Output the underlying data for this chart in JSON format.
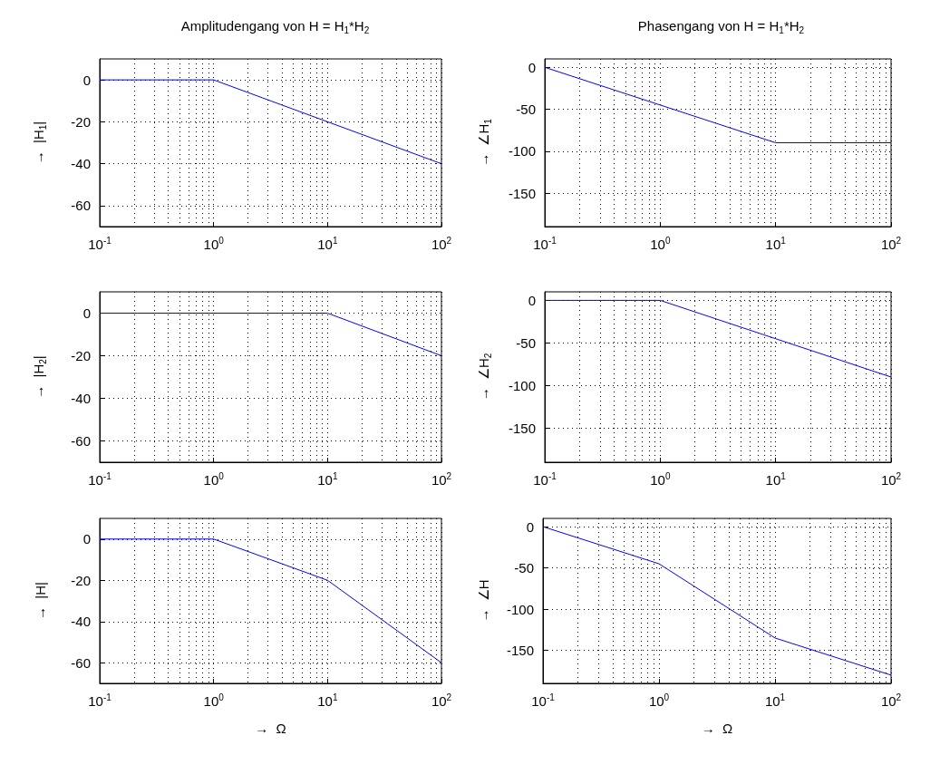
{
  "chart_data": [
    {
      "type": "line",
      "title": "Amplitudengang von H = H$_{1}$*H$_{2}$",
      "ylabel": "→  |H$_{1}$|",
      "log": "x",
      "grid": true,
      "marker": "none",
      "line_style": "solid",
      "xlim": [
        0.1,
        100
      ],
      "xticks": [
        {
          "value": 0.1,
          "label": "10$^{-1}$"
        },
        {
          "value": 1,
          "label": "10$^{0}$"
        },
        {
          "value": 10,
          "label": "10$^{1}$"
        },
        {
          "value": 100,
          "label": "10$^{2}$"
        }
      ],
      "ylim": [
        -70,
        10
      ],
      "yticks": [
        -60,
        -40,
        -20,
        0
      ],
      "series": [
        {
          "color": "#0000ff",
          "x": [
            0.1,
            1,
            100
          ],
          "values": [
            0,
            0,
            -40
          ]
        }
      ]
    },
    {
      "type": "line",
      "title": "Phasengang von H = H$_{1}$*H$_{2}$",
      "ylabel": "→  ∠H$_{1}$",
      "log": "x",
      "grid": true,
      "marker": "none",
      "line_style": "solid",
      "xlim": [
        0.1,
        100
      ],
      "xticks": [
        {
          "value": 0.1,
          "label": "10$^{-1}$"
        },
        {
          "value": 1,
          "label": "10$^{0}$"
        },
        {
          "value": 10,
          "label": "10$^{1}$"
        },
        {
          "value": 100,
          "label": "10$^{2}$"
        }
      ],
      "ylim": [
        -190,
        10
      ],
      "yticks": [
        -150,
        -100,
        -50,
        0
      ],
      "series": [
        {
          "color": "#0000ff",
          "x": [
            0.1,
            10,
            100
          ],
          "values": [
            0,
            -90,
            -90
          ]
        }
      ]
    },
    {
      "type": "line",
      "ylabel": "→  |H$_{2}$|",
      "log": "x",
      "grid": true,
      "marker": "none",
      "line_style": "solid",
      "xlim": [
        0.1,
        100
      ],
      "xticks": [
        {
          "value": 0.1,
          "label": "10$^{-1}$"
        },
        {
          "value": 1,
          "label": "10$^{0}$"
        },
        {
          "value": 10,
          "label": "10$^{1}$"
        },
        {
          "value": 100,
          "label": "10$^{2}$"
        }
      ],
      "ylim": [
        -70,
        10
      ],
      "yticks": [
        -60,
        -40,
        -20,
        0
      ],
      "series": [
        {
          "color": "#0000ff",
          "x": [
            0.1,
            10,
            100
          ],
          "values": [
            0,
            0,
            -20
          ]
        }
      ]
    },
    {
      "type": "line",
      "ylabel": "→  ∠H$_{2}$",
      "log": "x",
      "grid": true,
      "marker": "none",
      "line_style": "solid",
      "xlim": [
        0.1,
        100
      ],
      "xticks": [
        {
          "value": 0.1,
          "label": "10$^{-1}$"
        },
        {
          "value": 1,
          "label": "10$^{0}$"
        },
        {
          "value": 10,
          "label": "10$^{1}$"
        },
        {
          "value": 100,
          "label": "10$^{2}$"
        }
      ],
      "ylim": [
        -190,
        10
      ],
      "yticks": [
        -150,
        -100,
        -50,
        0
      ],
      "series": [
        {
          "color": "#0000ff",
          "x": [
            0.1,
            1,
            100
          ],
          "values": [
            0,
            0,
            -90
          ]
        }
      ]
    },
    {
      "type": "line",
      "ylabel": "→  |H|",
      "xlabel": "→  Ω",
      "log": "x",
      "grid": true,
      "marker": "none",
      "line_style": "solid",
      "xlim": [
        0.1,
        100
      ],
      "xticks": [
        {
          "value": 0.1,
          "label": "10$^{-1}$"
        },
        {
          "value": 1,
          "label": "10$^{0}$"
        },
        {
          "value": 10,
          "label": "10$^{1}$"
        },
        {
          "value": 100,
          "label": "10$^{2}$"
        }
      ],
      "ylim": [
        -70,
        10
      ],
      "yticks": [
        -60,
        -40,
        -20,
        0
      ],
      "series": [
        {
          "color": "#0000ff",
          "x": [
            0.1,
            1,
            10,
            100
          ],
          "values": [
            0,
            0,
            -20,
            -60
          ]
        }
      ]
    },
    {
      "type": "line",
      "ylabel": "→  ∠H",
      "xlabel": "→  Ω",
      "log": "x",
      "grid": true,
      "marker": "none",
      "line_style": "solid",
      "xlim": [
        0.1,
        100
      ],
      "xticks": [
        {
          "value": 0.1,
          "label": "10$^{-1}$"
        },
        {
          "value": 1,
          "label": "10$^{0}$"
        },
        {
          "value": 10,
          "label": "10$^{1}$"
        },
        {
          "value": 100,
          "label": "10$^{2}$"
        }
      ],
      "ylim": [
        -190,
        10
      ],
      "yticks": [
        -150,
        -100,
        -50,
        0
      ],
      "series": [
        {
          "color": "#0000ff",
          "x": [
            0.1,
            1,
            10,
            100
          ],
          "values": [
            0,
            -45,
            -135,
            -180
          ]
        }
      ]
    }
  ]
}
